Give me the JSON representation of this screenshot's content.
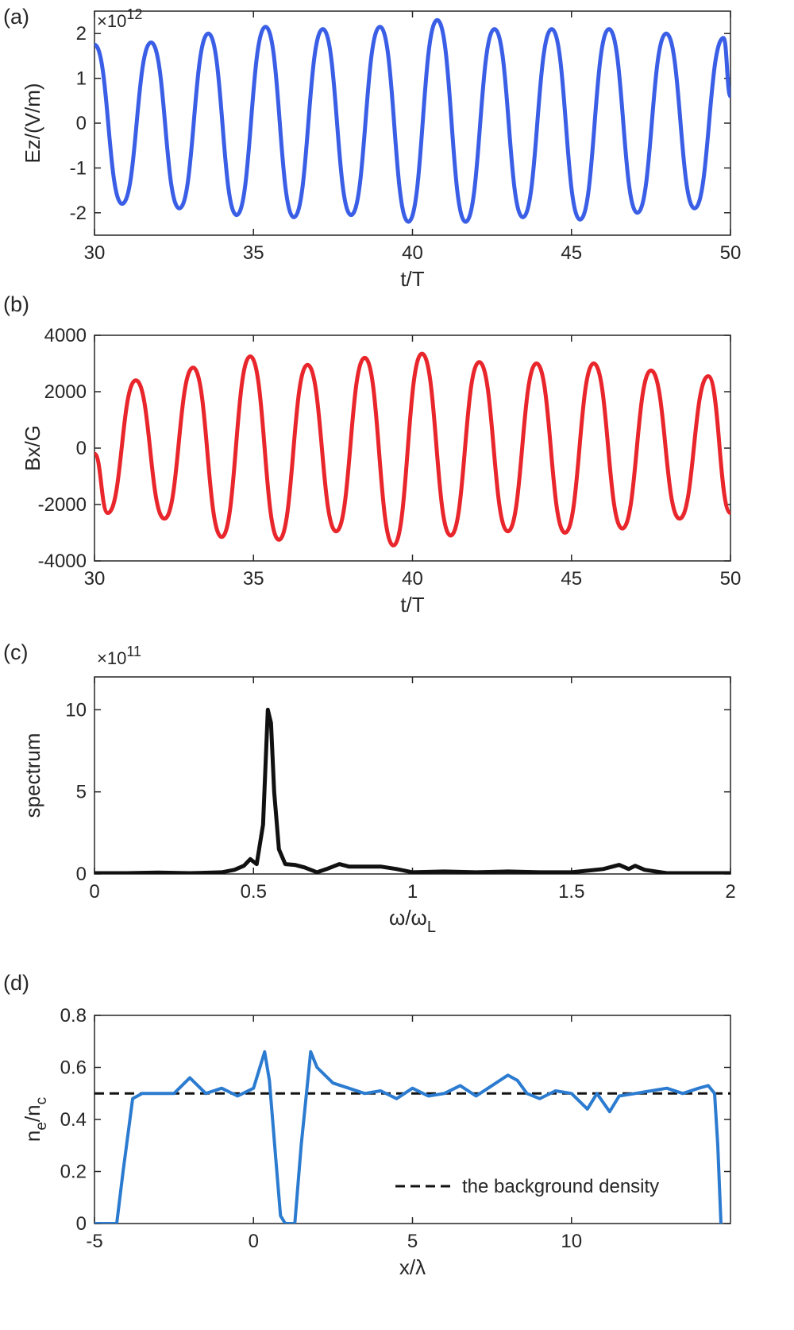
{
  "chart_data": [
    {
      "panel": "(a)",
      "type": "line",
      "xlabel": "t/T",
      "ylabel": "Ez/(V/m)",
      "multiplier_base": "×10",
      "multiplier_exp": "12",
      "xlim": [
        30,
        50
      ],
      "ylim": [
        -2.5,
        2.5
      ],
      "xticks": [
        30,
        35,
        40,
        45,
        50
      ],
      "yticks": [
        -2,
        -1,
        0,
        1,
        2
      ],
      "series": [
        {
          "color": "#3a5fe6",
          "x": [
            30.0,
            30.87,
            31.78,
            32.67,
            33.58,
            34.47,
            35.38,
            36.27,
            37.18,
            38.07,
            38.98,
            39.87,
            40.78,
            41.67,
            42.58,
            43.47,
            44.38,
            45.27,
            46.18,
            47.07,
            47.98,
            48.87,
            49.78,
            50.0
          ],
          "y": [
            1.75,
            -1.8,
            1.8,
            -1.9,
            2.0,
            -2.05,
            2.15,
            -2.1,
            2.1,
            -2.05,
            2.15,
            -2.2,
            2.3,
            -2.2,
            2.1,
            -2.1,
            2.1,
            -2.15,
            2.1,
            -2.0,
            2.0,
            -1.9,
            1.9,
            0.6
          ]
        }
      ]
    },
    {
      "panel": "(b)",
      "type": "line",
      "xlabel": "t/T",
      "ylabel": "Bx/G",
      "xlim": [
        30,
        50
      ],
      "ylim": [
        -4000,
        4000
      ],
      "xticks": [
        30,
        35,
        40,
        45,
        50
      ],
      "yticks": [
        -4000,
        -2000,
        0,
        2000,
        4000
      ],
      "series": [
        {
          "color": "#e8262c",
          "x": [
            30.0,
            30.42,
            31.3,
            32.2,
            33.1,
            34.0,
            34.9,
            35.8,
            36.7,
            37.6,
            38.5,
            39.4,
            40.3,
            41.2,
            42.1,
            43.0,
            43.9,
            44.8,
            45.7,
            46.6,
            47.5,
            48.4,
            49.3,
            50.0
          ],
          "y": [
            -200,
            -2300,
            2400,
            -2500,
            2850,
            -3150,
            3250,
            -3250,
            2950,
            -2950,
            3200,
            -3450,
            3350,
            -3100,
            3050,
            -2950,
            3000,
            -3000,
            3000,
            -2850,
            2750,
            -2500,
            2550,
            -2300
          ]
        }
      ]
    },
    {
      "panel": "(c)",
      "type": "line",
      "xlabel": "ω/ω",
      "xlabel_sub": "L",
      "ylabel": "spectrum",
      "multiplier_base": "×10",
      "multiplier_exp": "11",
      "xlim": [
        0,
        2
      ],
      "ylim": [
        0,
        12
      ],
      "xticks": [
        0,
        0.5,
        1,
        1.5,
        2
      ],
      "yticks": [
        0,
        5,
        10
      ],
      "series": [
        {
          "color": "#111111",
          "x": [
            0.0,
            0.1,
            0.2,
            0.3,
            0.4,
            0.44,
            0.47,
            0.49,
            0.51,
            0.53,
            0.545,
            0.555,
            0.565,
            0.58,
            0.6,
            0.63,
            0.66,
            0.7,
            0.73,
            0.77,
            0.8,
            0.85,
            0.9,
            0.95,
            1.0,
            1.1,
            1.2,
            1.3,
            1.4,
            1.5,
            1.55,
            1.6,
            1.65,
            1.68,
            1.7,
            1.73,
            1.8,
            1.9,
            2.0
          ],
          "y": [
            0.05,
            0.05,
            0.08,
            0.05,
            0.1,
            0.25,
            0.5,
            0.9,
            0.6,
            3.0,
            10.0,
            9.2,
            5.0,
            1.5,
            0.6,
            0.55,
            0.4,
            0.1,
            0.3,
            0.6,
            0.45,
            0.45,
            0.45,
            0.3,
            0.1,
            0.15,
            0.1,
            0.15,
            0.1,
            0.1,
            0.2,
            0.3,
            0.55,
            0.3,
            0.5,
            0.25,
            0.05,
            0.05,
            0.05
          ]
        }
      ]
    },
    {
      "panel": "(d)",
      "type": "line",
      "xlabel": "x/λ",
      "ylabel_base": "n",
      "ylabel_sub1": "e",
      "ylabel_mid": "/n",
      "ylabel_sub2": "c",
      "xlim": [
        -5,
        15
      ],
      "ylim": [
        0,
        0.8
      ],
      "xticks": [
        -5,
        0,
        5,
        10
      ],
      "yticks": [
        0,
        0.2,
        0.4,
        0.6,
        0.8
      ],
      "legend": {
        "label": "the background density",
        "position": "lower-right",
        "style": "dashed",
        "color": "#111111"
      },
      "reference_line": {
        "y": 0.5,
        "style": "dashed",
        "color": "#111111"
      },
      "series": [
        {
          "color": "#2b7bd0",
          "x": [
            -5.0,
            -4.3,
            -4.1,
            -3.8,
            -3.5,
            -3.0,
            -2.5,
            -2.0,
            -1.5,
            -1.0,
            -0.5,
            0.0,
            0.2,
            0.35,
            0.5,
            0.7,
            0.85,
            1.0,
            1.3,
            1.5,
            1.8,
            2.0,
            2.5,
            3.0,
            3.5,
            4.0,
            4.5,
            5.0,
            5.5,
            6.0,
            6.5,
            7.0,
            7.5,
            8.0,
            8.3,
            8.6,
            9.0,
            9.5,
            10.0,
            10.5,
            10.8,
            11.2,
            11.5,
            12.0,
            12.5,
            13.0,
            13.5,
            14.0,
            14.3,
            14.5,
            14.6,
            14.7
          ],
          "y": [
            0.0,
            0.0,
            0.2,
            0.48,
            0.5,
            0.5,
            0.5,
            0.56,
            0.5,
            0.52,
            0.49,
            0.52,
            0.6,
            0.66,
            0.55,
            0.25,
            0.03,
            0.0,
            0.0,
            0.3,
            0.66,
            0.6,
            0.54,
            0.52,
            0.5,
            0.51,
            0.48,
            0.52,
            0.49,
            0.5,
            0.53,
            0.49,
            0.53,
            0.57,
            0.55,
            0.5,
            0.48,
            0.51,
            0.5,
            0.44,
            0.5,
            0.43,
            0.49,
            0.5,
            0.51,
            0.52,
            0.5,
            0.52,
            0.53,
            0.5,
            0.3,
            0.0
          ]
        }
      ]
    }
  ]
}
